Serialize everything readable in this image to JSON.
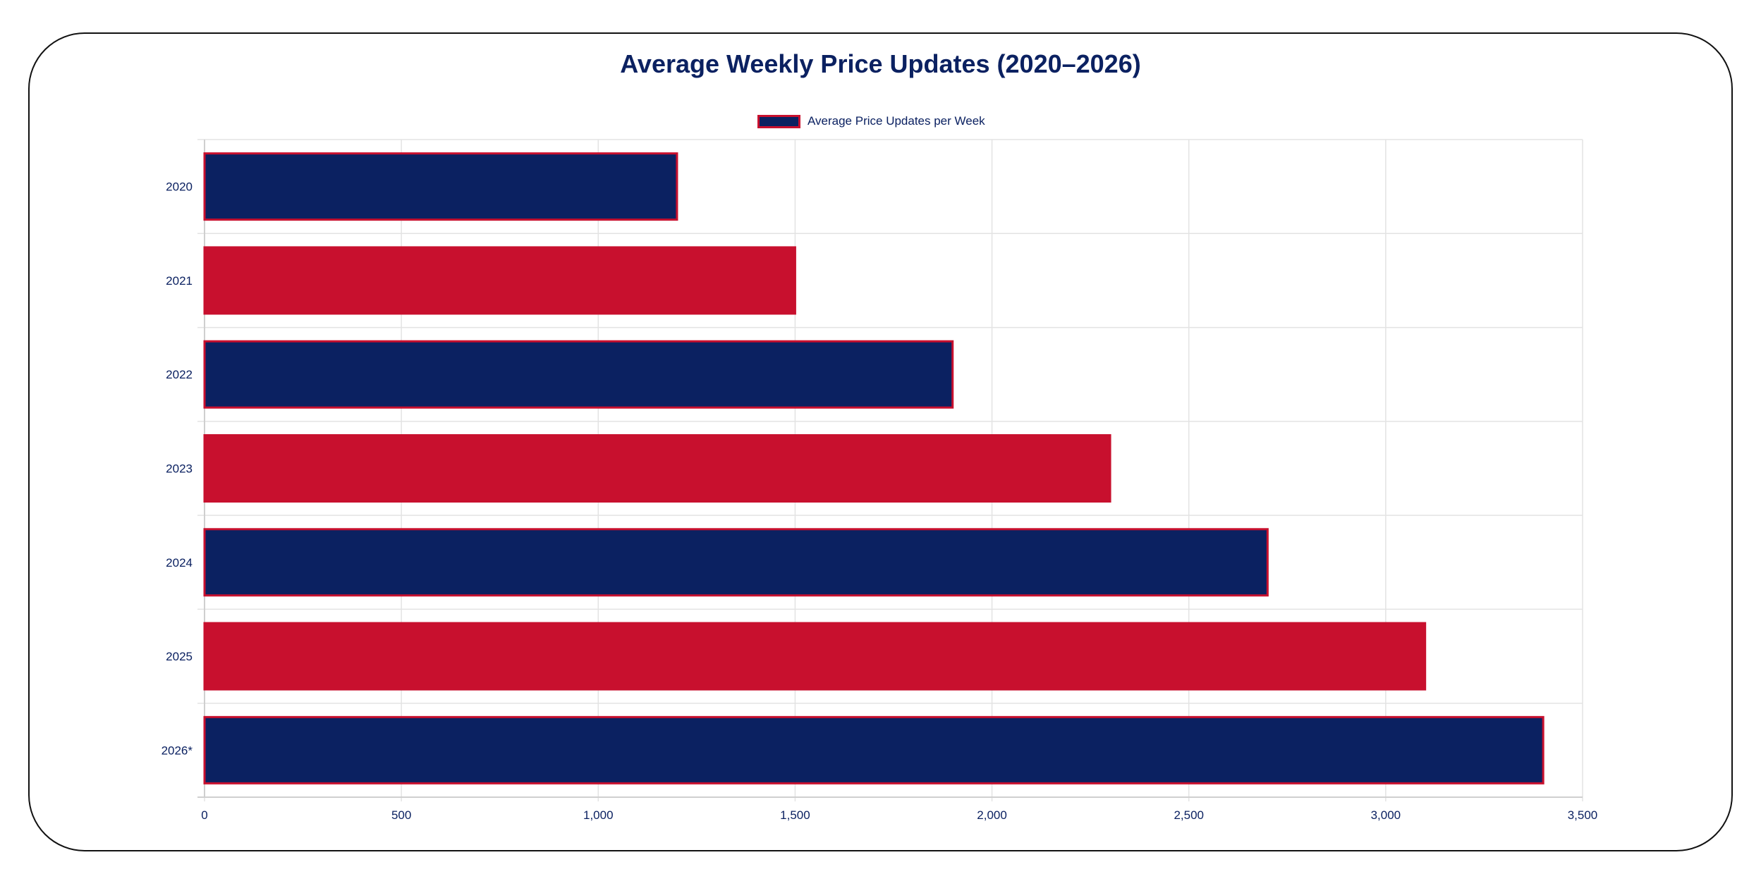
{
  "chart_data": {
    "type": "bar",
    "orientation": "horizontal",
    "title": "Average Weekly Price Updates (2020–2026)",
    "categories": [
      "2020",
      "2021",
      "2022",
      "2023",
      "2024",
      "2025",
      "2026*"
    ],
    "series": [
      {
        "name": "Average Price Updates per Week",
        "values": [
          1200,
          1500,
          1900,
          2300,
          2700,
          3100,
          3400
        ]
      }
    ],
    "bar_colors": [
      "#0b2161",
      "#c8102e",
      "#0b2161",
      "#c8102e",
      "#0b2161",
      "#c8102e",
      "#0b2161"
    ],
    "bar_border_color": "#c8102e",
    "xlim": [
      0,
      3500
    ],
    "xticks": [
      0,
      500,
      1000,
      1500,
      2000,
      2500,
      3000,
      3500
    ],
    "xtick_labels": [
      "0",
      "500",
      "1,000",
      "1,500",
      "2,000",
      "2,500",
      "3,000",
      "3,500"
    ],
    "xlabel": "",
    "ylabel": "",
    "grid": true,
    "legend_position": "top-center"
  },
  "colors": {
    "text": "#0b2161",
    "grid": "#e3e3e3",
    "frame": "#111111"
  }
}
